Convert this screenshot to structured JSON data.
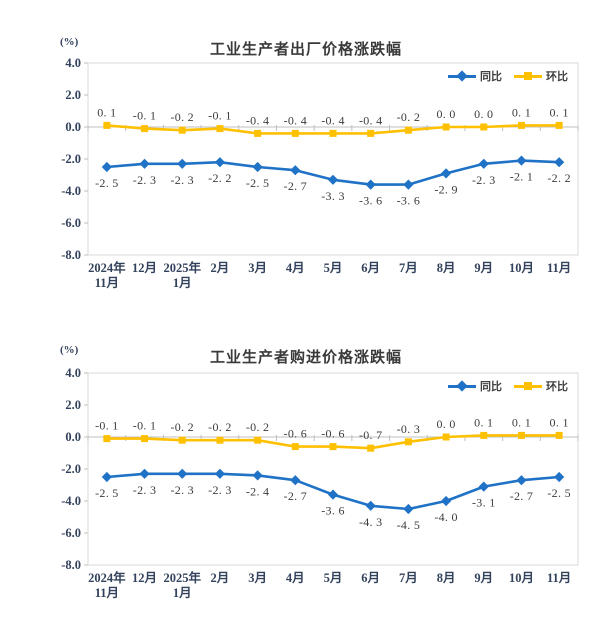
{
  "page": {
    "background": "#ffffff"
  },
  "colors": {
    "tongbi_blue": "#1f72c6",
    "huanbi_yellow": "#ffc000",
    "plot_border": "#d8d8d8",
    "zero_axis": "#bfbfbf"
  },
  "chart_data": [
    {
      "type": "line",
      "title": "工业生产者出厂价格涨跌幅",
      "ylabel": "(%)",
      "ylim": [
        -8.0,
        4.0
      ],
      "ytick_step": 2.0,
      "yticks": [
        "4.0",
        "2.0",
        "0.0",
        "-2.0",
        "-4.0",
        "-6.0",
        "-8.0"
      ],
      "grid": false,
      "legend_position": "top-right",
      "categories": [
        "2024年11月",
        "12月",
        "2025年1月",
        "2月",
        "3月",
        "4月",
        "5月",
        "6月",
        "7月",
        "8月",
        "9月",
        "10月",
        "11月"
      ],
      "category_lines": [
        [
          "2024年",
          "11月"
        ],
        [
          "12月"
        ],
        [
          "2025年",
          "1月"
        ],
        [
          "2月"
        ],
        [
          "3月"
        ],
        [
          "4月"
        ],
        [
          "5月"
        ],
        [
          "6月"
        ],
        [
          "7月"
        ],
        [
          "8月"
        ],
        [
          "9月"
        ],
        [
          "10月"
        ],
        [
          "11月"
        ]
      ],
      "series": [
        {
          "name": "同比",
          "color": "#1f72c6",
          "marker": "diamond",
          "label_side": "below",
          "values": [
            -2.5,
            -2.3,
            -2.3,
            -2.2,
            -2.5,
            -2.7,
            -3.3,
            -3.6,
            -3.6,
            -2.9,
            -2.3,
            -2.1,
            -2.2
          ],
          "labels": [
            "-2. 5",
            "-2. 3",
            "-2. 3",
            "-2. 2",
            "-2. 5",
            "-2. 7",
            "-3. 3",
            "-3. 6",
            "-3. 6",
            "-2. 9",
            "-2. 3",
            "-2. 1",
            "-2. 2"
          ]
        },
        {
          "name": "环比",
          "color": "#ffc000",
          "marker": "square",
          "label_side": "above",
          "values": [
            0.1,
            -0.1,
            -0.2,
            -0.1,
            -0.4,
            -0.4,
            -0.4,
            -0.4,
            -0.2,
            0.0,
            0.0,
            0.1,
            0.1
          ],
          "labels": [
            "0. 1",
            "-0. 1",
            "-0. 2",
            "-0. 1",
            "-0. 4",
            "-0. 4",
            "-0. 4",
            "-0. 4",
            "-0. 2",
            "0. 0",
            "0. 0",
            "0. 1",
            "0. 1"
          ]
        }
      ]
    },
    {
      "type": "line",
      "title": "工业生产者购进价格涨跌幅",
      "ylabel": "(%)",
      "ylim": [
        -8.0,
        4.0
      ],
      "ytick_step": 2.0,
      "yticks": [
        "4.0",
        "2.0",
        "0.0",
        "-2.0",
        "-4.0",
        "-6.0",
        "-8.0"
      ],
      "grid": false,
      "legend_position": "top-right",
      "categories": [
        "2024年11月",
        "12月",
        "2025年1月",
        "2月",
        "3月",
        "4月",
        "5月",
        "6月",
        "7月",
        "8月",
        "9月",
        "10月",
        "11月"
      ],
      "category_lines": [
        [
          "2024年",
          "11月"
        ],
        [
          "12月"
        ],
        [
          "2025年",
          "1月"
        ],
        [
          "2月"
        ],
        [
          "3月"
        ],
        [
          "4月"
        ],
        [
          "5月"
        ],
        [
          "6月"
        ],
        [
          "7月"
        ],
        [
          "8月"
        ],
        [
          "9月"
        ],
        [
          "10月"
        ],
        [
          "11月"
        ]
      ],
      "series": [
        {
          "name": "同比",
          "color": "#1f72c6",
          "marker": "diamond",
          "label_side": "below",
          "values": [
            -2.5,
            -2.3,
            -2.3,
            -2.3,
            -2.4,
            -2.7,
            -3.6,
            -4.3,
            -4.5,
            -4.0,
            -3.1,
            -2.7,
            -2.5
          ],
          "labels": [
            "-2. 5",
            "-2. 3",
            "-2. 3",
            "-2. 3",
            "-2. 4",
            "-2. 7",
            "-3. 6",
            "-4. 3",
            "-4. 5",
            "-4. 0",
            "-3. 1",
            "-2. 7",
            "-2. 5"
          ]
        },
        {
          "name": "环比",
          "color": "#ffc000",
          "marker": "square",
          "label_side": "above",
          "values": [
            -0.1,
            -0.1,
            -0.2,
            -0.2,
            -0.2,
            -0.6,
            -0.6,
            -0.7,
            -0.3,
            0.0,
            0.1,
            0.1,
            0.1
          ],
          "labels": [
            "-0. 1",
            "-0. 1",
            "-0. 2",
            "-0. 2",
            "-0. 2",
            "-0. 6",
            "-0. 6",
            "-0. 7",
            "-0. 3",
            "0. 0",
            "0. 1",
            "0. 1",
            "0. 1"
          ]
        }
      ]
    }
  ]
}
